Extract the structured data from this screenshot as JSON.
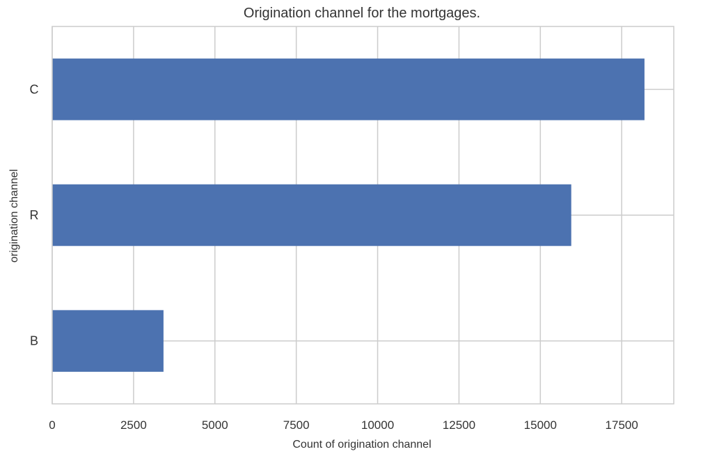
{
  "chart_data": {
    "type": "bar",
    "orientation": "horizontal",
    "title": "Origination channel for the mortgages.",
    "xlabel": "Count of origination channel",
    "ylabel": "origination channel",
    "categories": [
      "C",
      "R",
      "B"
    ],
    "values": [
      18200,
      15950,
      3420
    ],
    "xlim": [
      0,
      19100
    ],
    "x_ticks": [
      0,
      2500,
      5000,
      7500,
      10000,
      12500,
      15000,
      17500
    ],
    "x_tick_labels": [
      "0",
      "2500",
      "5000",
      "7500",
      "10000",
      "12500",
      "15000",
      "17500"
    ],
    "grid": true,
    "legend": "none",
    "bar_color": "#4c72b0",
    "grid_color": "#cccccc",
    "frame_color": "#cccccc",
    "text_color": "#333333"
  }
}
